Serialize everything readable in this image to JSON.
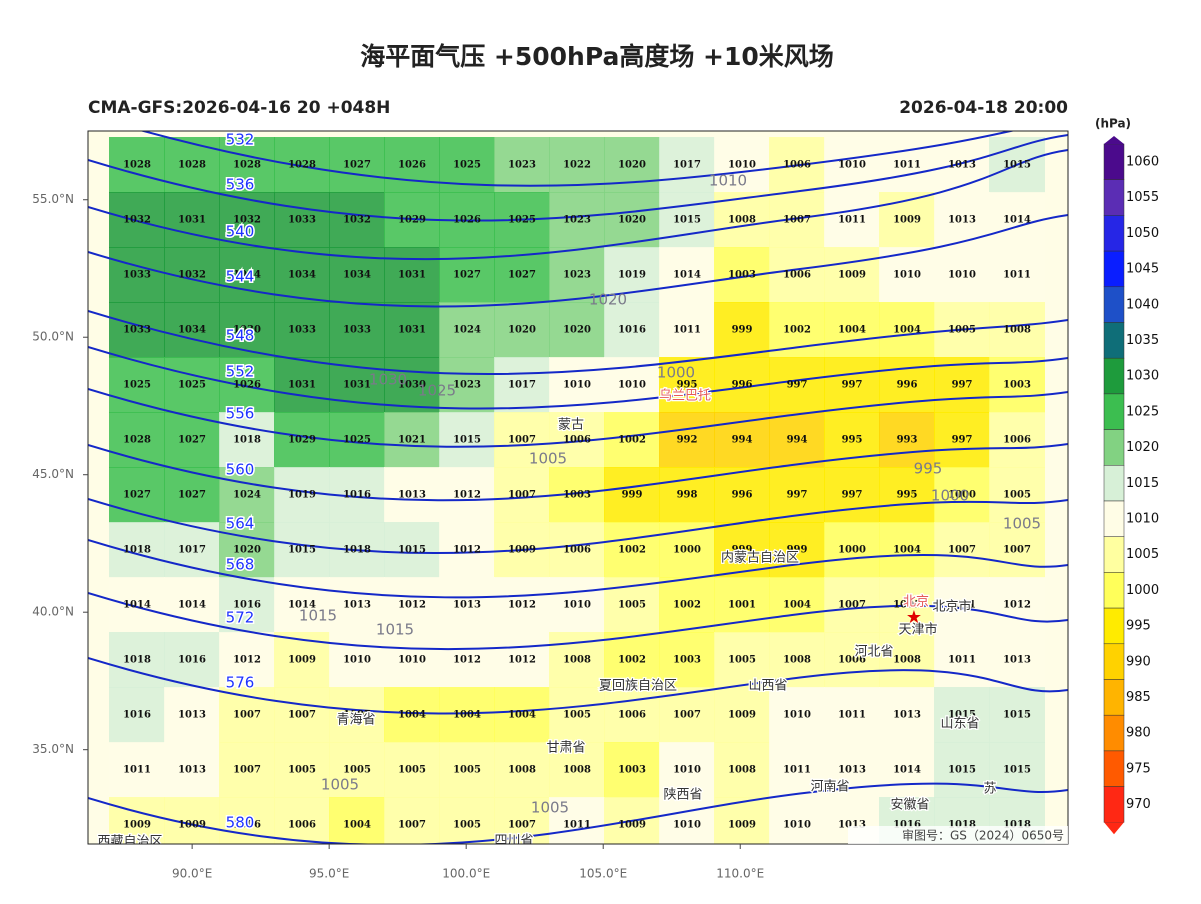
{
  "header": {
    "title": "海平面气压 +500hPa高度场 +10米风场",
    "run": "CMA-GFS:2026-04-16 20 +048H",
    "valid": "2026-04-18 20:00",
    "footnote": "审图号：GS（2024）0650号"
  },
  "map": {
    "lat_ticks": [
      {
        "value": 55,
        "label": "55.0°N"
      },
      {
        "value": 50,
        "label": "50.0°N"
      },
      {
        "value": 45,
        "label": "45.0°N"
      },
      {
        "value": 40,
        "label": "40.0°N"
      },
      {
        "value": 35,
        "label": "35.0°N"
      }
    ],
    "lon_ticks": [
      {
        "value": 90,
        "label": "90.0°E"
      },
      {
        "value": 95,
        "label": "95.0°E"
      },
      {
        "value": 100,
        "label": "100.0°E"
      },
      {
        "value": 105,
        "label": "105.0°E"
      },
      {
        "value": 110,
        "label": "110.0°E"
      }
    ],
    "pressure_grid": [
      [
        1028,
        1028,
        1028,
        1028,
        1027,
        1026,
        1025,
        1023,
        1022,
        1020,
        1017,
        1010,
        1006,
        1010,
        1011,
        1013,
        1015
      ],
      [
        1032,
        1031,
        1032,
        1033,
        1032,
        1029,
        1026,
        1025,
        1023,
        1020,
        1015,
        1008,
        1007,
        1011,
        1009,
        1013,
        1014
      ],
      [
        1033,
        1032,
        1034,
        1034,
        1034,
        1031,
        1027,
        1027,
        1023,
        1019,
        1014,
        1003,
        1006,
        1009,
        1010,
        1010,
        1011
      ],
      [
        1033,
        1034,
        1030,
        1033,
        1033,
        1031,
        1024,
        1020,
        1020,
        1016,
        1011,
        999,
        1002,
        1004,
        1004,
        1005,
        1008
      ],
      [
        1025,
        1025,
        1026,
        1031,
        1031,
        1030,
        1023,
        1017,
        1010,
        1010,
        995,
        996,
        997,
        997,
        996,
        997,
        1003
      ],
      [
        1028,
        1027,
        1018,
        1029,
        1025,
        1021,
        1015,
        1007,
        1006,
        1002,
        992,
        994,
        994,
        995,
        993,
        997,
        1006
      ],
      [
        1027,
        1027,
        1024,
        1019,
        1016,
        1013,
        1012,
        1007,
        1003,
        999,
        998,
        996,
        997,
        997,
        995,
        1000,
        1005
      ],
      [
        1018,
        1017,
        1020,
        1015,
        1018,
        1015,
        1012,
        1009,
        1006,
        1002,
        1000,
        999,
        999,
        1000,
        1004,
        1007,
        1007
      ],
      [
        1014,
        1014,
        1016,
        1014,
        1013,
        1012,
        1013,
        1012,
        1010,
        1005,
        1002,
        1001,
        1004,
        1007,
        1009,
        1011,
        1012
      ],
      [
        1018,
        1016,
        1012,
        1009,
        1010,
        1010,
        1012,
        1012,
        1008,
        1002,
        1003,
        1005,
        1008,
        1006,
        1008,
        1011,
        1013
      ],
      [
        1016,
        1013,
        1007,
        1007,
        1007,
        1004,
        1004,
        1004,
        1005,
        1006,
        1007,
        1009,
        1010,
        1011,
        1013,
        1015,
        1015
      ],
      [
        1011,
        1013,
        1007,
        1005,
        1005,
        1005,
        1005,
        1008,
        1008,
        1003,
        1010,
        1008,
        1011,
        1013,
        1014,
        1015,
        1015
      ],
      [
        1009,
        1009,
        1006,
        1006,
        1004,
        1007,
        1005,
        1007,
        1011,
        1009,
        1010,
        1009,
        1010,
        1013,
        1016,
        1018,
        1018
      ]
    ],
    "height_labels": [
      "532",
      "536",
      "540",
      "544",
      "548",
      "552",
      "556",
      "560",
      "564",
      "568",
      "572",
      "576",
      "580"
    ],
    "isobar_labels": [
      "1010",
      "1020",
      "1030",
      "1025",
      "1000",
      "1005",
      "995",
      "1000",
      "1005",
      "1015",
      "1015",
      "1005",
      "1005"
    ],
    "places": [
      "蒙古",
      "乌兰巴托",
      "内蒙古自治区",
      "北京",
      "北京市",
      "天津市",
      "河北省",
      "山西省",
      "山东省",
      "陕西省",
      "甘肃省",
      "青海省",
      "夏回族自治区",
      "河南省",
      "安徽省",
      "四川省",
      "西藏自治区",
      "苏"
    ]
  },
  "colorbar": {
    "unit": "(hPa)",
    "levels": [
      1060,
      1055,
      1050,
      1045,
      1040,
      1035,
      1030,
      1025,
      1020,
      1015,
      1010,
      1005,
      1000,
      995,
      990,
      985,
      980,
      975,
      970
    ],
    "colors": [
      "#4b0a8c",
      "#5b2db4",
      "#2626e6",
      "#0a1eff",
      "#1e50c8",
      "#0f6e78",
      "#1e9b3c",
      "#3cbe50",
      "#82d282",
      "#d7f0d7",
      "#fffde6",
      "#ffffa0",
      "#ffff5a",
      "#ffeb00",
      "#ffd200",
      "#ffb400",
      "#ff8c00",
      "#ff5a00",
      "#ff2814"
    ]
  }
}
